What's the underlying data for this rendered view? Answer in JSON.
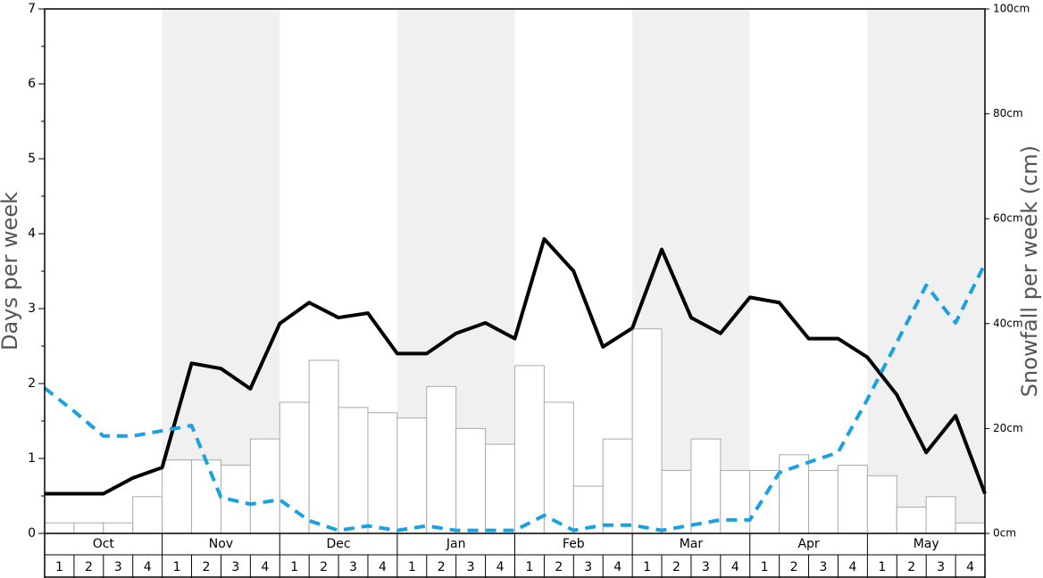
{
  "chart_data": {
    "type": "bar",
    "ylabel": "Days per week",
    "y2label": "Snowfall per week (cm)",
    "months": [
      "Oct",
      "Nov",
      "Dec",
      "Jan",
      "Feb",
      "Mar",
      "Apr",
      "May"
    ],
    "weeks": [
      1,
      2,
      3,
      4
    ],
    "ylim": [
      0,
      7
    ],
    "yticks": [
      0,
      1,
      2,
      3,
      4,
      5,
      6,
      7
    ],
    "y2lim": [
      0,
      100
    ],
    "y2ticks": [
      {
        "value": 0,
        "label": "0cm"
      },
      {
        "value": 20,
        "label": "20cm"
      },
      {
        "value": 40,
        "label": "40cm"
      },
      {
        "value": 60,
        "label": "60cm"
      },
      {
        "value": 80,
        "label": "80cm"
      },
      {
        "value": 100,
        "label": "100cm"
      }
    ],
    "series": [
      {
        "type": "bar",
        "axis": "y2",
        "color": "#ffffff",
        "values": [
          2,
          2,
          2,
          7,
          14,
          14,
          13,
          18,
          25,
          33,
          24,
          23,
          22,
          28,
          20,
          17,
          32,
          25,
          9,
          18,
          39,
          12,
          18,
          12,
          12,
          15,
          12,
          13,
          11,
          5,
          7,
          2
        ]
      },
      {
        "type": "line",
        "color": "#000000",
        "dash": false,
        "values": [
          0.53,
          0.53,
          0.53,
          0.74,
          0.88,
          2.27,
          2.2,
          1.93,
          2.8,
          3.08,
          2.88,
          2.94,
          2.4,
          2.4,
          2.67,
          2.81,
          2.6,
          3.93,
          3.5,
          2.49,
          2.74,
          3.79,
          2.88,
          2.67,
          3.15,
          3.08,
          2.6,
          2.6,
          2.35,
          1.85,
          1.08,
          1.57,
          0.53
        ]
      },
      {
        "type": "line",
        "color": "#1ba1e2",
        "dash": true,
        "values": [
          1.94,
          1.63,
          1.3,
          1.3,
          1.37,
          1.44,
          0.48,
          0.39,
          0.45,
          0.17,
          0.04,
          0.1,
          0.04,
          0.1,
          0.04,
          0.04,
          0.04,
          0.24,
          0.04,
          0.11,
          0.11,
          0.04,
          0.11,
          0.18,
          0.18,
          0.81,
          0.95,
          1.08,
          1.79,
          2.55,
          3.31,
          2.81,
          3.6
        ]
      }
    ]
  }
}
